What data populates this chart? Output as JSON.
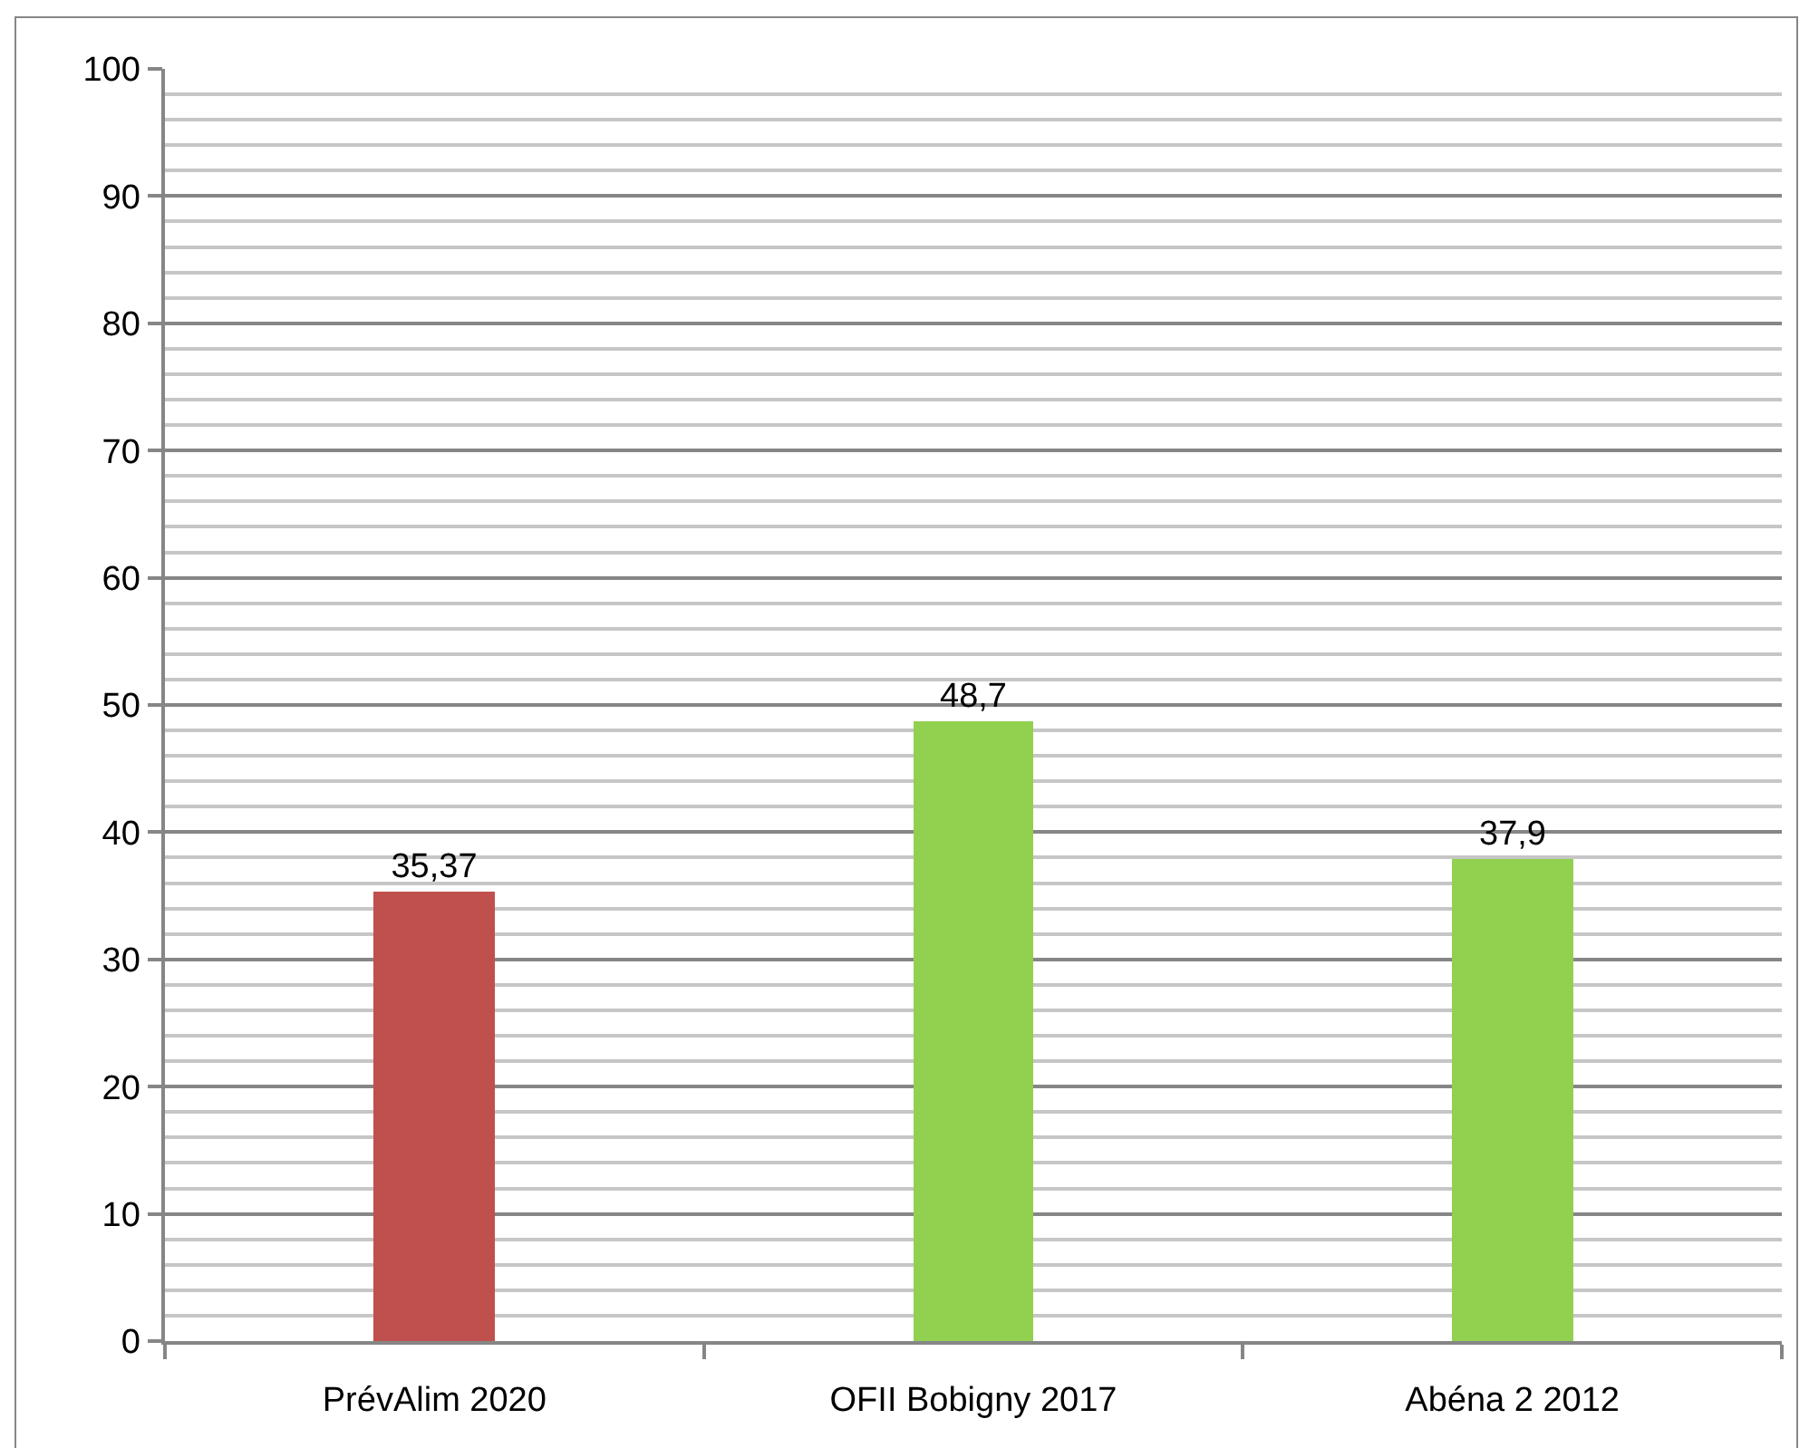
{
  "chart_data": {
    "type": "bar",
    "categories": [
      "PrévAlim 2020",
      "OFII Bobigny 2017",
      "Abéna 2 2012"
    ],
    "values": [
      35.37,
      48.7,
      37.9
    ],
    "colors": [
      "#c0504d",
      "#92d050",
      "#92d050"
    ],
    "value_labels": [
      "35,37",
      "48,7",
      "37,9"
    ],
    "ylim": [
      0,
      100
    ],
    "yticks": [
      0,
      {
        "value": 2,
        "label": null
      },
      {
        "value": 4,
        "label": null
      },
      {
        "value": 6,
        "label": null
      },
      {
        "value": 8,
        "label": null
      },
      10,
      {
        "value": 12,
        "label": null
      },
      {
        "value": 14,
        "label": null
      },
      {
        "value": 16,
        "label": null
      },
      {
        "value": 18,
        "label": null
      },
      20,
      {
        "value": 22,
        "label": null
      },
      {
        "value": 24,
        "label": null
      },
      {
        "value": 26,
        "label": null
      },
      {
        "value": 28,
        "label": null
      },
      30,
      {
        "value": 32,
        "label": null
      },
      {
        "value": 34,
        "label": null
      },
      {
        "value": 36,
        "label": null
      },
      {
        "value": 38,
        "label": null
      },
      40,
      {
        "value": 42,
        "label": null
      },
      {
        "value": 44,
        "label": null
      },
      {
        "value": 46,
        "label": null
      },
      {
        "value": 48,
        "label": null
      },
      50,
      {
        "value": 52,
        "label": null
      },
      {
        "value": 54,
        "label": null
      },
      {
        "value": 56,
        "label": null
      },
      {
        "value": 58,
        "label": null
      },
      60,
      {
        "value": 62,
        "label": null
      },
      {
        "value": 64,
        "label": null
      },
      {
        "value": 66,
        "label": null
      },
      {
        "value": 68,
        "label": null
      },
      70,
      {
        "value": 72,
        "label": null
      },
      {
        "value": 74,
        "label": null
      },
      {
        "value": 76,
        "label": null
      },
      {
        "value": 78,
        "label": null
      },
      80,
      {
        "value": 82,
        "label": null
      },
      {
        "value": 84,
        "label": null
      },
      {
        "value": 86,
        "label": null
      },
      {
        "value": 88,
        "label": null
      },
      90,
      {
        "value": 92,
        "label": null
      },
      {
        "value": 94,
        "label": null
      },
      {
        "value": 96,
        "label": null
      },
      {
        "value": 98,
        "label": null
      },
      100
    ],
    "grid": "y"
  }
}
